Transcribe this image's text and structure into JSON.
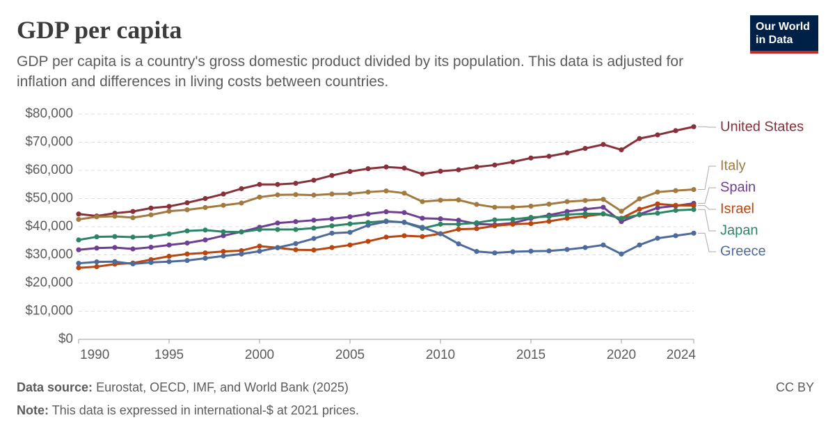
{
  "header": {
    "title": "GDP per capita",
    "subtitle": "GDP per capita is a country's gross domestic product divided by its population. This data is adjusted for inflation and differences in living costs between countries.",
    "logo": "Our World in Data"
  },
  "footer": {
    "source_label": "Data source:",
    "source": "Eurostat, OECD, IMF, and World Bank (2025)",
    "note_label": "Note:",
    "note": "This data is expressed in international-$ at 2021 prices.",
    "license": "CC BY"
  },
  "chart_data": {
    "type": "line",
    "x": [
      1990,
      1991,
      1992,
      1993,
      1994,
      1995,
      1996,
      1997,
      1998,
      1999,
      2000,
      2001,
      2002,
      2003,
      2004,
      2005,
      2006,
      2007,
      2008,
      2009,
      2010,
      2011,
      2012,
      2013,
      2014,
      2015,
      2016,
      2017,
      2018,
      2019,
      2020,
      2021,
      2022,
      2023,
      2024
    ],
    "xlim": [
      1990,
      2024
    ],
    "xticks": [
      1990,
      1995,
      2000,
      2005,
      2010,
      2015,
      2020,
      2024
    ],
    "ylim": [
      0,
      80000
    ],
    "yticks": [
      {
        "value": 0,
        "label": "$0"
      },
      {
        "value": 10000,
        "label": "$10,000"
      },
      {
        "value": 20000,
        "label": "$20,000"
      },
      {
        "value": 30000,
        "label": "$30,000"
      },
      {
        "value": 40000,
        "label": "$40,000"
      },
      {
        "value": 50000,
        "label": "$50,000"
      },
      {
        "value": 60000,
        "label": "$60,000"
      },
      {
        "value": 70000,
        "label": "$70,000"
      },
      {
        "value": 80000,
        "label": "$80,000"
      }
    ],
    "grid": true,
    "series": [
      {
        "name": "United States",
        "color": "#883039",
        "values": [
          44500,
          43800,
          44800,
          45400,
          46600,
          47200,
          48500,
          50000,
          51600,
          53500,
          55000,
          55000,
          55400,
          56500,
          58200,
          59600,
          60600,
          61200,
          60800,
          58700,
          59700,
          60200,
          61200,
          61900,
          63000,
          64400,
          65000,
          66200,
          67800,
          69200,
          67300,
          71300,
          72600,
          74100,
          75500
        ]
      },
      {
        "name": "Italy",
        "color": "#a2793e",
        "values": [
          42600,
          43500,
          43700,
          43200,
          44200,
          45500,
          46000,
          46800,
          47600,
          48400,
          50500,
          51300,
          51400,
          51200,
          51600,
          51700,
          52300,
          52700,
          51900,
          48900,
          49400,
          49500,
          47900,
          46900,
          46900,
          47300,
          48000,
          48900,
          49300,
          49700,
          45500,
          49900,
          52300,
          52800,
          53200
        ]
      },
      {
        "name": "Spain",
        "color": "#6d3e91",
        "values": [
          31800,
          32400,
          32600,
          32100,
          32700,
          33500,
          34200,
          35300,
          36800,
          38200,
          39800,
          41300,
          41800,
          42300,
          42800,
          43500,
          44500,
          45300,
          45000,
          43000,
          42800,
          42300,
          41000,
          40700,
          41300,
          42900,
          44100,
          45400,
          46200,
          46900,
          41800,
          44400,
          46700,
          47400,
          48300
        ]
      },
      {
        "name": "Israel",
        "color": "#b8460f",
        "values": [
          25400,
          25800,
          26700,
          27100,
          28300,
          29500,
          30300,
          30700,
          31200,
          31500,
          33100,
          32500,
          31800,
          31700,
          32600,
          33500,
          34800,
          36300,
          36800,
          36500,
          37500,
          39100,
          39300,
          40300,
          40900,
          41100,
          41900,
          43000,
          43700,
          44500,
          43000,
          46200,
          48100,
          47600,
          47500
        ]
      },
      {
        "name": "Japan",
        "color": "#2c8465",
        "values": [
          35300,
          36400,
          36500,
          36300,
          36500,
          37400,
          38500,
          38800,
          38200,
          38100,
          39000,
          39000,
          39000,
          39500,
          40300,
          41000,
          41500,
          42000,
          41500,
          39400,
          40900,
          40900,
          41400,
          42400,
          42600,
          43300,
          43600,
          44300,
          44600,
          44600,
          42900,
          44200,
          44800,
          45800,
          46100
        ]
      },
      {
        "name": "Greece",
        "color": "#4c6a9c",
        "values": [
          27000,
          27500,
          27600,
          26800,
          27300,
          27600,
          28000,
          28800,
          29600,
          30300,
          31300,
          32600,
          34000,
          35800,
          37700,
          38000,
          40500,
          41800,
          41600,
          39800,
          37500,
          33900,
          31200,
          30700,
          31100,
          31300,
          31400,
          31900,
          32600,
          33500,
          30300,
          33500,
          35900,
          36800,
          37700
        ]
      }
    ]
  }
}
